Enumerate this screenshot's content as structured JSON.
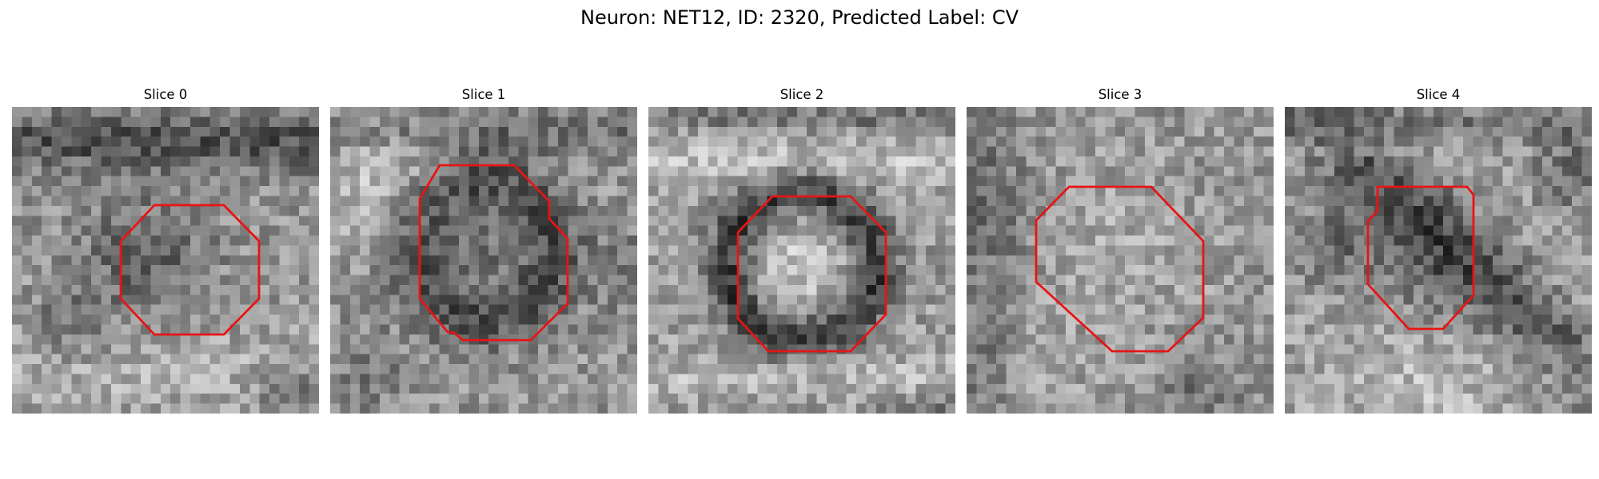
{
  "figure": {
    "title": "Neuron: NET12, ID: 2320, Predicted Label: CV",
    "outline_color": "#e81414"
  },
  "slices": [
    {
      "title": "Slice 0"
    },
    {
      "title": "Slice 1"
    },
    {
      "title": "Slice 2"
    },
    {
      "title": "Slice 3"
    },
    {
      "title": "Slice 4"
    }
  ]
}
